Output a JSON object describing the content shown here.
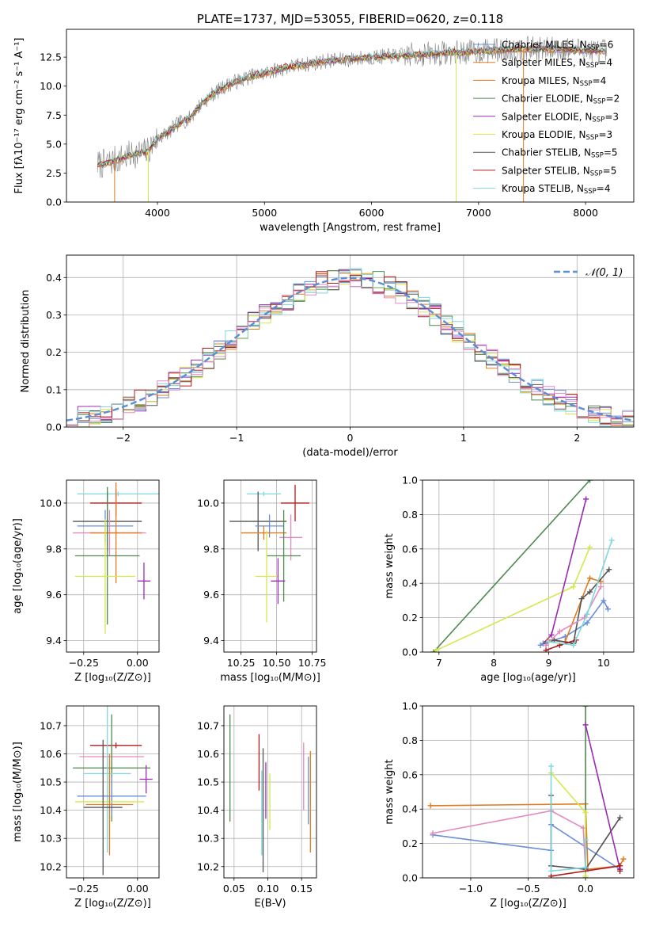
{
  "colors": {
    "chabrier_miles": "#6a8fd8",
    "salpeter_miles": "#e07b1f",
    "kroupa_miles": "#e07b1f",
    "chabrier_elodie": "#4f8a4f",
    "salpeter_elodie": "#9a2cb3",
    "kroupa_elodie": "#d6e84a",
    "chabrier_stelib": "#555555",
    "salpeter_stelib": "#b01c1c",
    "kroupa_stelib": "#7fd8dd",
    "pink": "#e58ac0",
    "normal_curve": "#5b8ed6",
    "spectrum_data": "#808080"
  },
  "chart_data": [
    {
      "id": "spectrum",
      "type": "line",
      "title": "PLATE=1737, MJD=53055, FIBERID=0620, z=0.118",
      "xlabel": "wavelength [Angstrom, rest frame]",
      "ylabel": "Flux [fλ10⁻¹⁷ erg cm⁻² s⁻¹ A⁻¹]",
      "xlim": [
        3150,
        8450
      ],
      "ylim": [
        0,
        14.9
      ],
      "xticks": [
        4000,
        5000,
        6000,
        7000,
        8000
      ],
      "yticks": [
        0.0,
        2.5,
        5.0,
        7.5,
        10.0,
        12.5
      ],
      "ytick_labels": [
        "0.0",
        "2.5",
        "5.0",
        "7.5",
        "10.0",
        "12.5"
      ],
      "legend_position": "top-right",
      "legend": [
        {
          "name": "Chabrier MILES, N",
          "sub": "SSP",
          "tail": "=6",
          "color": "chabrier_miles"
        },
        {
          "name": "Salpeter MILES, N",
          "sub": "SSP",
          "tail": "=4",
          "color": "salpeter_miles"
        },
        {
          "name": "Kroupa MILES, N",
          "sub": "SSP",
          "tail": "=4",
          "color": "kroupa_miles"
        },
        {
          "name": "Chabrier ELODIE, N",
          "sub": "SSP",
          "tail": "=2",
          "color": "chabrier_elodie"
        },
        {
          "name": "Salpeter ELODIE, N",
          "sub": "SSP",
          "tail": "=3",
          "color": "salpeter_elodie"
        },
        {
          "name": "Kroupa ELODIE, N",
          "sub": "SSP",
          "tail": "=3",
          "color": "kroupa_elodie"
        },
        {
          "name": "Chabrier STELIB, N",
          "sub": "SSP",
          "tail": "=5",
          "color": "chabrier_stelib"
        },
        {
          "name": "Salpeter STELIB, N",
          "sub": "SSP",
          "tail": "=5",
          "color": "salpeter_stelib"
        },
        {
          "name": "Kroupa STELIB, N",
          "sub": "SSP",
          "tail": "=4",
          "color": "kroupa_stelib"
        }
      ],
      "continuum": {
        "x": [
          3400,
          3500,
          3600,
          3700,
          3800,
          3900,
          4000,
          4100,
          4200,
          4300,
          4400,
          4500,
          4600,
          4700,
          4800,
          4900,
          5000,
          5200,
          5400,
          5600,
          5800,
          6000,
          6200,
          6400,
          6600,
          6800,
          7000,
          7200,
          7400,
          7600,
          7800,
          8000,
          8200
        ],
        "y": [
          3.2,
          3.3,
          3.6,
          3.9,
          4.2,
          4.3,
          5.5,
          6.0,
          6.8,
          7.2,
          8.4,
          9.2,
          9.8,
          10.3,
          10.6,
          10.9,
          11.1,
          11.6,
          11.9,
          12.2,
          12.3,
          12.5,
          12.6,
          12.7,
          12.8,
          12.9,
          13.0,
          13.1,
          13.2,
          13.2,
          13.2,
          13.1,
          13.0
        ]
      }
    },
    {
      "id": "residuals",
      "type": "line",
      "xlabel": "(data-model)/error",
      "ylabel": "Normed distribution",
      "xlim": [
        -2.5,
        2.5
      ],
      "ylim": [
        0,
        0.46
      ],
      "xticks": [
        -2,
        -1,
        0,
        1,
        2
      ],
      "xtick_labels": [
        "−2",
        "−1",
        "0",
        "1",
        "2"
      ],
      "yticks": [
        0.0,
        0.1,
        0.2,
        0.3,
        0.4
      ],
      "ytick_labels": [
        "0.0",
        "0.1",
        "0.2",
        "0.3",
        "0.4"
      ],
      "legend_position": "top-right",
      "legend_label": "𝒩(0, 1)",
      "bin_width": 0.1,
      "series": [
        {
          "color": "chabrier_miles",
          "seed": 11
        },
        {
          "color": "salpeter_miles",
          "seed": 23
        },
        {
          "color": "chabrier_elodie",
          "seed": 37
        },
        {
          "color": "salpeter_elodie",
          "seed": 41
        },
        {
          "color": "kroupa_elodie",
          "seed": 53
        },
        {
          "color": "chabrier_stelib",
          "seed": 67
        },
        {
          "color": "salpeter_stelib",
          "seed": 71
        },
        {
          "color": "kroupa_stelib",
          "seed": 83
        },
        {
          "color": "pink",
          "seed": 97
        }
      ]
    },
    {
      "id": "age_vs_Z",
      "type": "scatter",
      "xlabel": "Z [log₁₀(Z/Z⊙)]",
      "ylabel": "age  [log₁₀(age/yr)]",
      "xlim": [
        -0.33,
        0.1
      ],
      "ylim": [
        9.35,
        10.1
      ],
      "xticks": [
        -0.25,
        0.0
      ],
      "xtick_labels": [
        "−0.25",
        "0.00"
      ],
      "yticks": [
        9.4,
        9.6,
        9.8,
        10.0
      ],
      "ytick_labels": [
        "9.4",
        "9.6",
        "9.8",
        "10.0"
      ],
      "points": [
        {
          "x": -0.09,
          "y": 10.04,
          "xerr": 0.19,
          "yerr": 0.01,
          "color": "kroupa_stelib"
        },
        {
          "x": -0.1,
          "y": 10.0,
          "xerr": 0.12,
          "yerr": 0.06,
          "color": "salpeter_stelib"
        },
        {
          "x": -0.14,
          "y": 9.92,
          "xerr": 0.16,
          "yerr": 0.13,
          "color": "chabrier_stelib"
        },
        {
          "x": -0.15,
          "y": 9.9,
          "xerr": 0.13,
          "yerr": 0.07,
          "color": "chabrier_miles"
        },
        {
          "x": -0.13,
          "y": 9.87,
          "xerr": 0.17,
          "yerr": 0.1,
          "color": "pink"
        },
        {
          "x": -0.1,
          "y": 9.87,
          "xerr": 0.12,
          "yerr": 0.22,
          "color": "salpeter_miles"
        },
        {
          "x": -0.14,
          "y": 9.77,
          "xerr": 0.15,
          "yerr": 0.3,
          "color": "chabrier_elodie"
        },
        {
          "x": -0.15,
          "y": 9.68,
          "xerr": 0.14,
          "yerr": 0.25,
          "color": "kroupa_elodie"
        },
        {
          "x": 0.03,
          "y": 9.66,
          "xerr": 0.03,
          "yerr": 0.08,
          "color": "salpeter_elodie"
        }
      ]
    },
    {
      "id": "age_vs_mass",
      "type": "scatter",
      "xlabel": "mass [log₁₀(M/M⊙)]",
      "xlim": [
        10.13,
        10.78
      ],
      "ylim": [
        9.35,
        10.1
      ],
      "xticks": [
        10.25,
        10.5,
        10.75
      ],
      "xtick_labels": [
        "10.25",
        "10.50",
        "10.75"
      ],
      "yticks": [
        9.4,
        9.6,
        9.8,
        10.0
      ],
      "ytick_labels": [
        "9.4",
        "9.6",
        "9.8",
        "10.0"
      ],
      "points": [
        {
          "x": 10.41,
          "y": 10.04,
          "xerr": 0.12,
          "yerr": 0.01,
          "color": "kroupa_stelib"
        },
        {
          "x": 10.63,
          "y": 10.0,
          "xerr": 0.1,
          "yerr": 0.08,
          "color": "salpeter_stelib"
        },
        {
          "x": 10.37,
          "y": 9.92,
          "xerr": 0.2,
          "yerr": 0.13,
          "color": "chabrier_stelib"
        },
        {
          "x": 10.45,
          "y": 9.9,
          "xerr": 0.1,
          "yerr": 0.05,
          "color": "chabrier_miles"
        },
        {
          "x": 10.41,
          "y": 9.87,
          "xerr": 0.16,
          "yerr": 0.03,
          "color": "salpeter_miles"
        },
        {
          "x": 10.6,
          "y": 9.85,
          "xerr": 0.08,
          "yerr": 0.1,
          "color": "pink"
        },
        {
          "x": 10.55,
          "y": 9.77,
          "xerr": 0.12,
          "yerr": 0.2,
          "color": "chabrier_elodie"
        },
        {
          "x": 10.43,
          "y": 9.68,
          "xerr": 0.08,
          "yerr": 0.2,
          "color": "kroupa_elodie"
        },
        {
          "x": 10.51,
          "y": 9.66,
          "xerr": 0.05,
          "yerr": 0.1,
          "color": "salpeter_elodie"
        }
      ]
    },
    {
      "id": "mass_weight_vs_age",
      "type": "line",
      "xlabel": "age  [log₁₀(age/yr)]",
      "ylabel": "mass weight",
      "xlim": [
        6.7,
        10.55
      ],
      "ylim": [
        0,
        1.0
      ],
      "xticks": [
        7,
        8,
        9,
        10
      ],
      "yticks": [
        0.0,
        0.2,
        0.4,
        0.6,
        0.8,
        1.0
      ],
      "ytick_labels": [
        "0.0",
        "0.2",
        "0.4",
        "0.6",
        "0.8",
        "1.0"
      ],
      "series": [
        {
          "color": "chabrier_elodie",
          "x": [
            6.9,
            9.75
          ],
          "y": [
            0.0,
            1.0
          ]
        },
        {
          "color": "kroupa_elodie",
          "x": [
            6.95,
            9.45,
            9.75
          ],
          "y": [
            0.01,
            0.38,
            0.61
          ]
        },
        {
          "color": "salpeter_elodie",
          "x": [
            8.9,
            9.05,
            9.68
          ],
          "y": [
            0.05,
            0.1,
            0.89
          ]
        },
        {
          "color": "chabrier_miles",
          "x": [
            8.85,
            8.9,
            9.3,
            9.7,
            10.0,
            10.08
          ],
          "y": [
            0.04,
            0.05,
            0.09,
            0.17,
            0.3,
            0.25
          ]
        },
        {
          "color": "salpeter_miles",
          "x": [
            9.0,
            9.3,
            9.75,
            9.95
          ],
          "y": [
            0.07,
            0.06,
            0.43,
            0.41
          ]
        },
        {
          "color": "chabrier_stelib",
          "x": [
            8.95,
            9.1,
            9.45,
            9.6,
            9.75,
            10.1
          ],
          "y": [
            0.05,
            0.07,
            0.05,
            0.31,
            0.35,
            0.48
          ]
        },
        {
          "color": "salpeter_stelib",
          "x": [
            8.95,
            9.2,
            9.5
          ],
          "y": [
            0.01,
            0.04,
            0.07
          ]
        },
        {
          "color": "pink",
          "x": [
            8.95,
            9.2,
            9.65,
            9.95
          ],
          "y": [
            0.04,
            0.12,
            0.2,
            0.38
          ]
        },
        {
          "color": "kroupa_stelib",
          "x": [
            9.0,
            9.45,
            9.7,
            10.15
          ],
          "y": [
            0.06,
            0.04,
            0.22,
            0.65
          ]
        }
      ]
    },
    {
      "id": "mass_vs_Z",
      "type": "scatter",
      "xlabel": "Z [log₁₀(Z/Z⊙)]",
      "ylabel": "mass [log₁₀(M/M⊙)]",
      "xlim": [
        -0.33,
        0.1
      ],
      "ylim": [
        10.16,
        10.77
      ],
      "xticks": [
        -0.25,
        0.0
      ],
      "xtick_labels": [
        "−0.25",
        "0.00"
      ],
      "yticks": [
        10.2,
        10.3,
        10.4,
        10.5,
        10.6,
        10.7
      ],
      "ytick_labels": [
        "10.2",
        "10.3",
        "10.4",
        "10.5",
        "10.6",
        "10.7"
      ],
      "points": [
        {
          "x": -0.1,
          "y": 10.63,
          "xerr": 0.12,
          "yerr": 0.01,
          "color": "salpeter_stelib"
        },
        {
          "x": -0.12,
          "y": 10.59,
          "xerr": 0.15,
          "yerr": 0.05,
          "color": "pink"
        },
        {
          "x": -0.12,
          "y": 10.55,
          "xerr": 0.18,
          "yerr": 0.19,
          "color": "chabrier_elodie"
        },
        {
          "x": -0.14,
          "y": 10.53,
          "xerr": 0.11,
          "yerr": 0.28,
          "color": "kroupa_stelib"
        },
        {
          "x": 0.04,
          "y": 10.51,
          "xerr": 0.03,
          "yerr": 0.05,
          "color": "salpeter_elodie"
        },
        {
          "x": -0.12,
          "y": 10.45,
          "xerr": 0.16,
          "yerr": 0.07,
          "color": "chabrier_miles"
        },
        {
          "x": -0.13,
          "y": 10.43,
          "xerr": 0.16,
          "yerr": 0.12,
          "color": "kroupa_elodie"
        },
        {
          "x": -0.13,
          "y": 10.42,
          "xerr": 0.11,
          "yerr": 0.18,
          "color": "salpeter_miles"
        },
        {
          "x": -0.16,
          "y": 10.41,
          "xerr": 0.09,
          "yerr": 0.24,
          "color": "chabrier_stelib"
        }
      ]
    },
    {
      "id": "mass_vs_ebv",
      "type": "scatter",
      "xlabel": "E(B-V)",
      "xlim": [
        0.035,
        0.172
      ],
      "ylim": [
        10.16,
        10.77
      ],
      "xticks": [
        0.05,
        0.1,
        0.15
      ],
      "xtick_labels": [
        "0.05",
        "0.10",
        "0.15"
      ],
      "yticks": [
        10.2,
        10.3,
        10.4,
        10.5,
        10.6,
        10.7
      ],
      "ytick_labels": [
        "10.2",
        "10.3",
        "10.4",
        "10.5",
        "10.6",
        "10.7"
      ],
      "points": [
        {
          "x": 0.044,
          "y": 10.55,
          "xerr": 0.0,
          "yerr": 0.19,
          "color": "chabrier_elodie"
        },
        {
          "x": 0.087,
          "y": 10.57,
          "xerr": 0.0,
          "yerr": 0.1,
          "color": "salpeter_stelib"
        },
        {
          "x": 0.091,
          "y": 10.39,
          "xerr": 0.0,
          "yerr": 0.15,
          "color": "kroupa_stelib"
        },
        {
          "x": 0.093,
          "y": 10.4,
          "xerr": 0.0,
          "yerr": 0.22,
          "color": "chabrier_stelib"
        },
        {
          "x": 0.097,
          "y": 10.47,
          "xerr": 0.0,
          "yerr": 0.1,
          "color": "salpeter_elodie"
        },
        {
          "x": 0.103,
          "y": 10.43,
          "xerr": 0.0,
          "yerr": 0.1,
          "color": "kroupa_elodie"
        },
        {
          "x": 0.153,
          "y": 10.52,
          "xerr": 0.0,
          "yerr": 0.12,
          "color": "pink"
        },
        {
          "x": 0.16,
          "y": 10.47,
          "xerr": 0.0,
          "yerr": 0.12,
          "color": "chabrier_miles"
        },
        {
          "x": 0.163,
          "y": 10.43,
          "xerr": 0.0,
          "yerr": 0.18,
          "color": "salpeter_miles"
        }
      ]
    },
    {
      "id": "mass_weight_vs_Z",
      "type": "line",
      "xlabel": "Z [log₁₀(Z/Z⊙)]",
      "ylabel": "mass weight",
      "xlim": [
        -1.42,
        0.42
      ],
      "ylim": [
        0,
        1.0
      ],
      "xticks": [
        -1.0,
        -0.5,
        0.0
      ],
      "xtick_labels": [
        "−1.0",
        "−0.5",
        "0.0"
      ],
      "yticks": [
        0.0,
        0.2,
        0.4,
        0.6,
        0.8,
        1.0
      ],
      "ytick_labels": [
        "0.0",
        "0.2",
        "0.4",
        "0.6",
        "0.8",
        "1.0"
      ],
      "series": [
        {
          "color": "salpeter_miles",
          "x": [
            -1.35,
            0.0,
            0.02,
            0.3,
            0.33
          ],
          "y": [
            0.42,
            0.43,
            0.05,
            0.07,
            0.11
          ]
        },
        {
          "color": "chabrier_miles",
          "x": [
            -1.33,
            -0.3,
            -0.3,
            0.3
          ],
          "y": [
            0.25,
            0.16,
            0.31,
            0.05
          ]
        },
        {
          "color": "pink",
          "x": [
            -1.33,
            -0.3,
            -0.02,
            0.0,
            0.3
          ],
          "y": [
            0.26,
            0.39,
            0.29,
            0.04,
            0.07
          ]
        },
        {
          "color": "chabrier_elodie",
          "x": [
            0.0,
            0.0
          ],
          "y": [
            0.0,
            1.0
          ]
        },
        {
          "color": "salpeter_elodie",
          "x": [
            0.0,
            0.3
          ],
          "y": [
            0.89,
            0.05
          ]
        },
        {
          "color": "kroupa_elodie",
          "x": [
            -0.3,
            0.0,
            0.0
          ],
          "y": [
            0.61,
            0.38,
            0.01
          ]
        },
        {
          "color": "chabrier_stelib",
          "x": [
            -0.3,
            -0.3,
            0.0,
            0.3
          ],
          "y": [
            0.48,
            0.07,
            0.05,
            0.35
          ]
        },
        {
          "color": "salpeter_stelib",
          "x": [
            -0.3,
            0.3,
            0.3
          ],
          "y": [
            0.01,
            0.07,
            0.04
          ]
        },
        {
          "color": "kroupa_stelib",
          "x": [
            -0.3,
            -0.3,
            0.0,
            0.0
          ],
          "y": [
            0.65,
            0.04,
            0.06,
            0.22
          ]
        }
      ]
    }
  ]
}
